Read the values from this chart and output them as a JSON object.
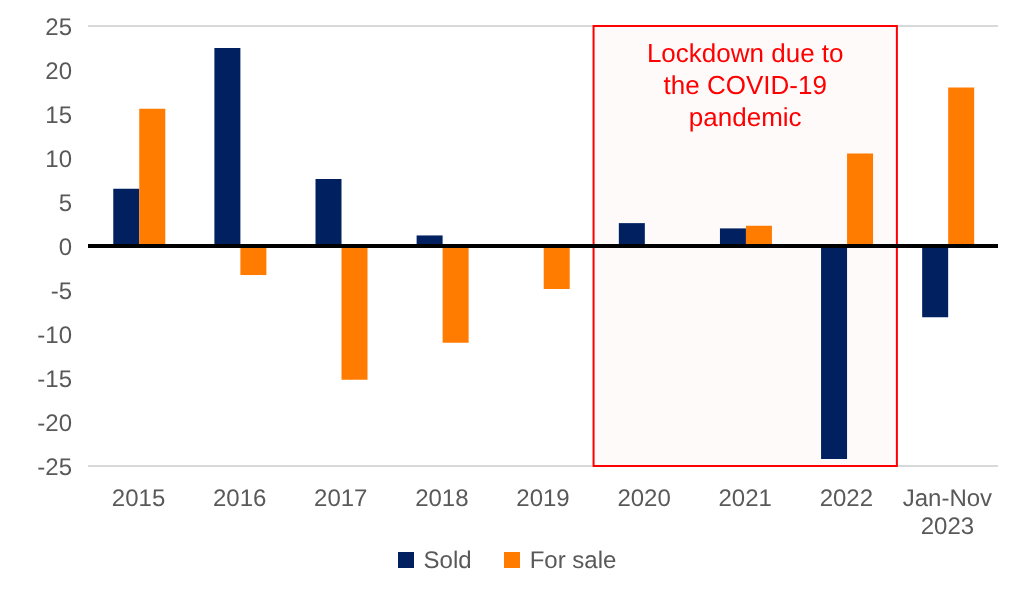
{
  "chart_data": {
    "type": "bar",
    "categories": [
      "2015",
      "2016",
      "2017",
      "2018",
      "2019",
      "2020",
      "2021",
      "2022",
      "Jan-Nov 2023"
    ],
    "series": [
      {
        "name": "Sold",
        "color": "#002060",
        "values": [
          6.5,
          22.5,
          7.6,
          1.2,
          null,
          2.6,
          2.0,
          -24.2,
          -8.1
        ]
      },
      {
        "name": "For sale",
        "color": "#ff7c00",
        "values": [
          15.6,
          -3.3,
          -15.2,
          -11.0,
          -4.9,
          null,
          2.3,
          10.5,
          18.0
        ]
      }
    ],
    "ylim": [
      -25,
      25
    ],
    "yticks": [
      -25,
      -20,
      -15,
      -10,
      -5,
      0,
      5,
      10,
      15,
      20,
      25
    ],
    "grid": "y",
    "legend": "bottom",
    "bands": [
      {
        "axis": "x",
        "from": "2020",
        "to": "2022",
        "label": "Lockdown due to the COVID-19 pandemic",
        "color": "#ff0000"
      }
    ]
  }
}
